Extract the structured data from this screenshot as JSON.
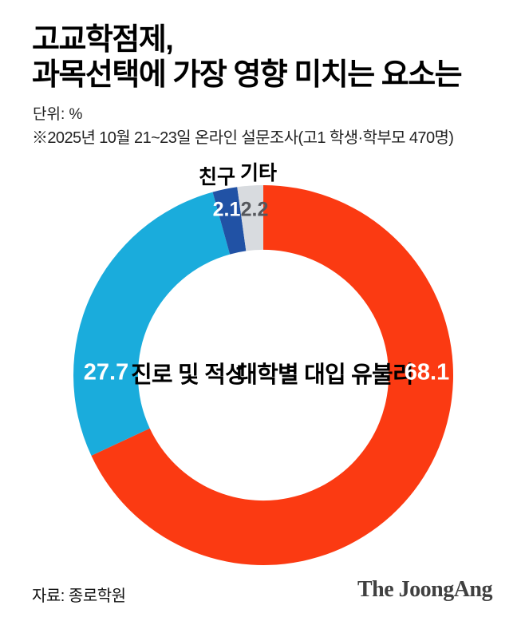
{
  "header": {
    "title_line1": "고교학점제,",
    "title_line2": "과목선택에 가장 영향 미치는 요소는",
    "unit": "단위: %",
    "note": "※2025년 10월 21~23일 온라인 설문조사(고1 학생·학부모 470명)"
  },
  "chart_data": {
    "type": "pie",
    "subtype": "donut",
    "title": "고교학점제, 과목선택에 가장 영향 미치는 요소는",
    "unit": "%",
    "start_angle_deg": 0,
    "direction": "clockwise",
    "hole_ratio": 0.66,
    "legend_position": "on-chart",
    "segments": [
      {
        "label": "대학별 대입 유불리",
        "value": 68.1,
        "color": "#fb3a12",
        "value_color": "#ffffff"
      },
      {
        "label": "진로 및 적성",
        "value": 27.7,
        "color": "#1aacdc",
        "value_color": "#ffffff"
      },
      {
        "label": "친구",
        "value": 2.1,
        "color": "#2152a5",
        "value_color": "#ffffff"
      },
      {
        "label": "기타",
        "value": 2.2,
        "color": "#d8dbdf",
        "value_color": "#55575c"
      }
    ]
  },
  "footer": {
    "source": "자료: 종로학원",
    "logo_text": "The JoongAng"
  }
}
